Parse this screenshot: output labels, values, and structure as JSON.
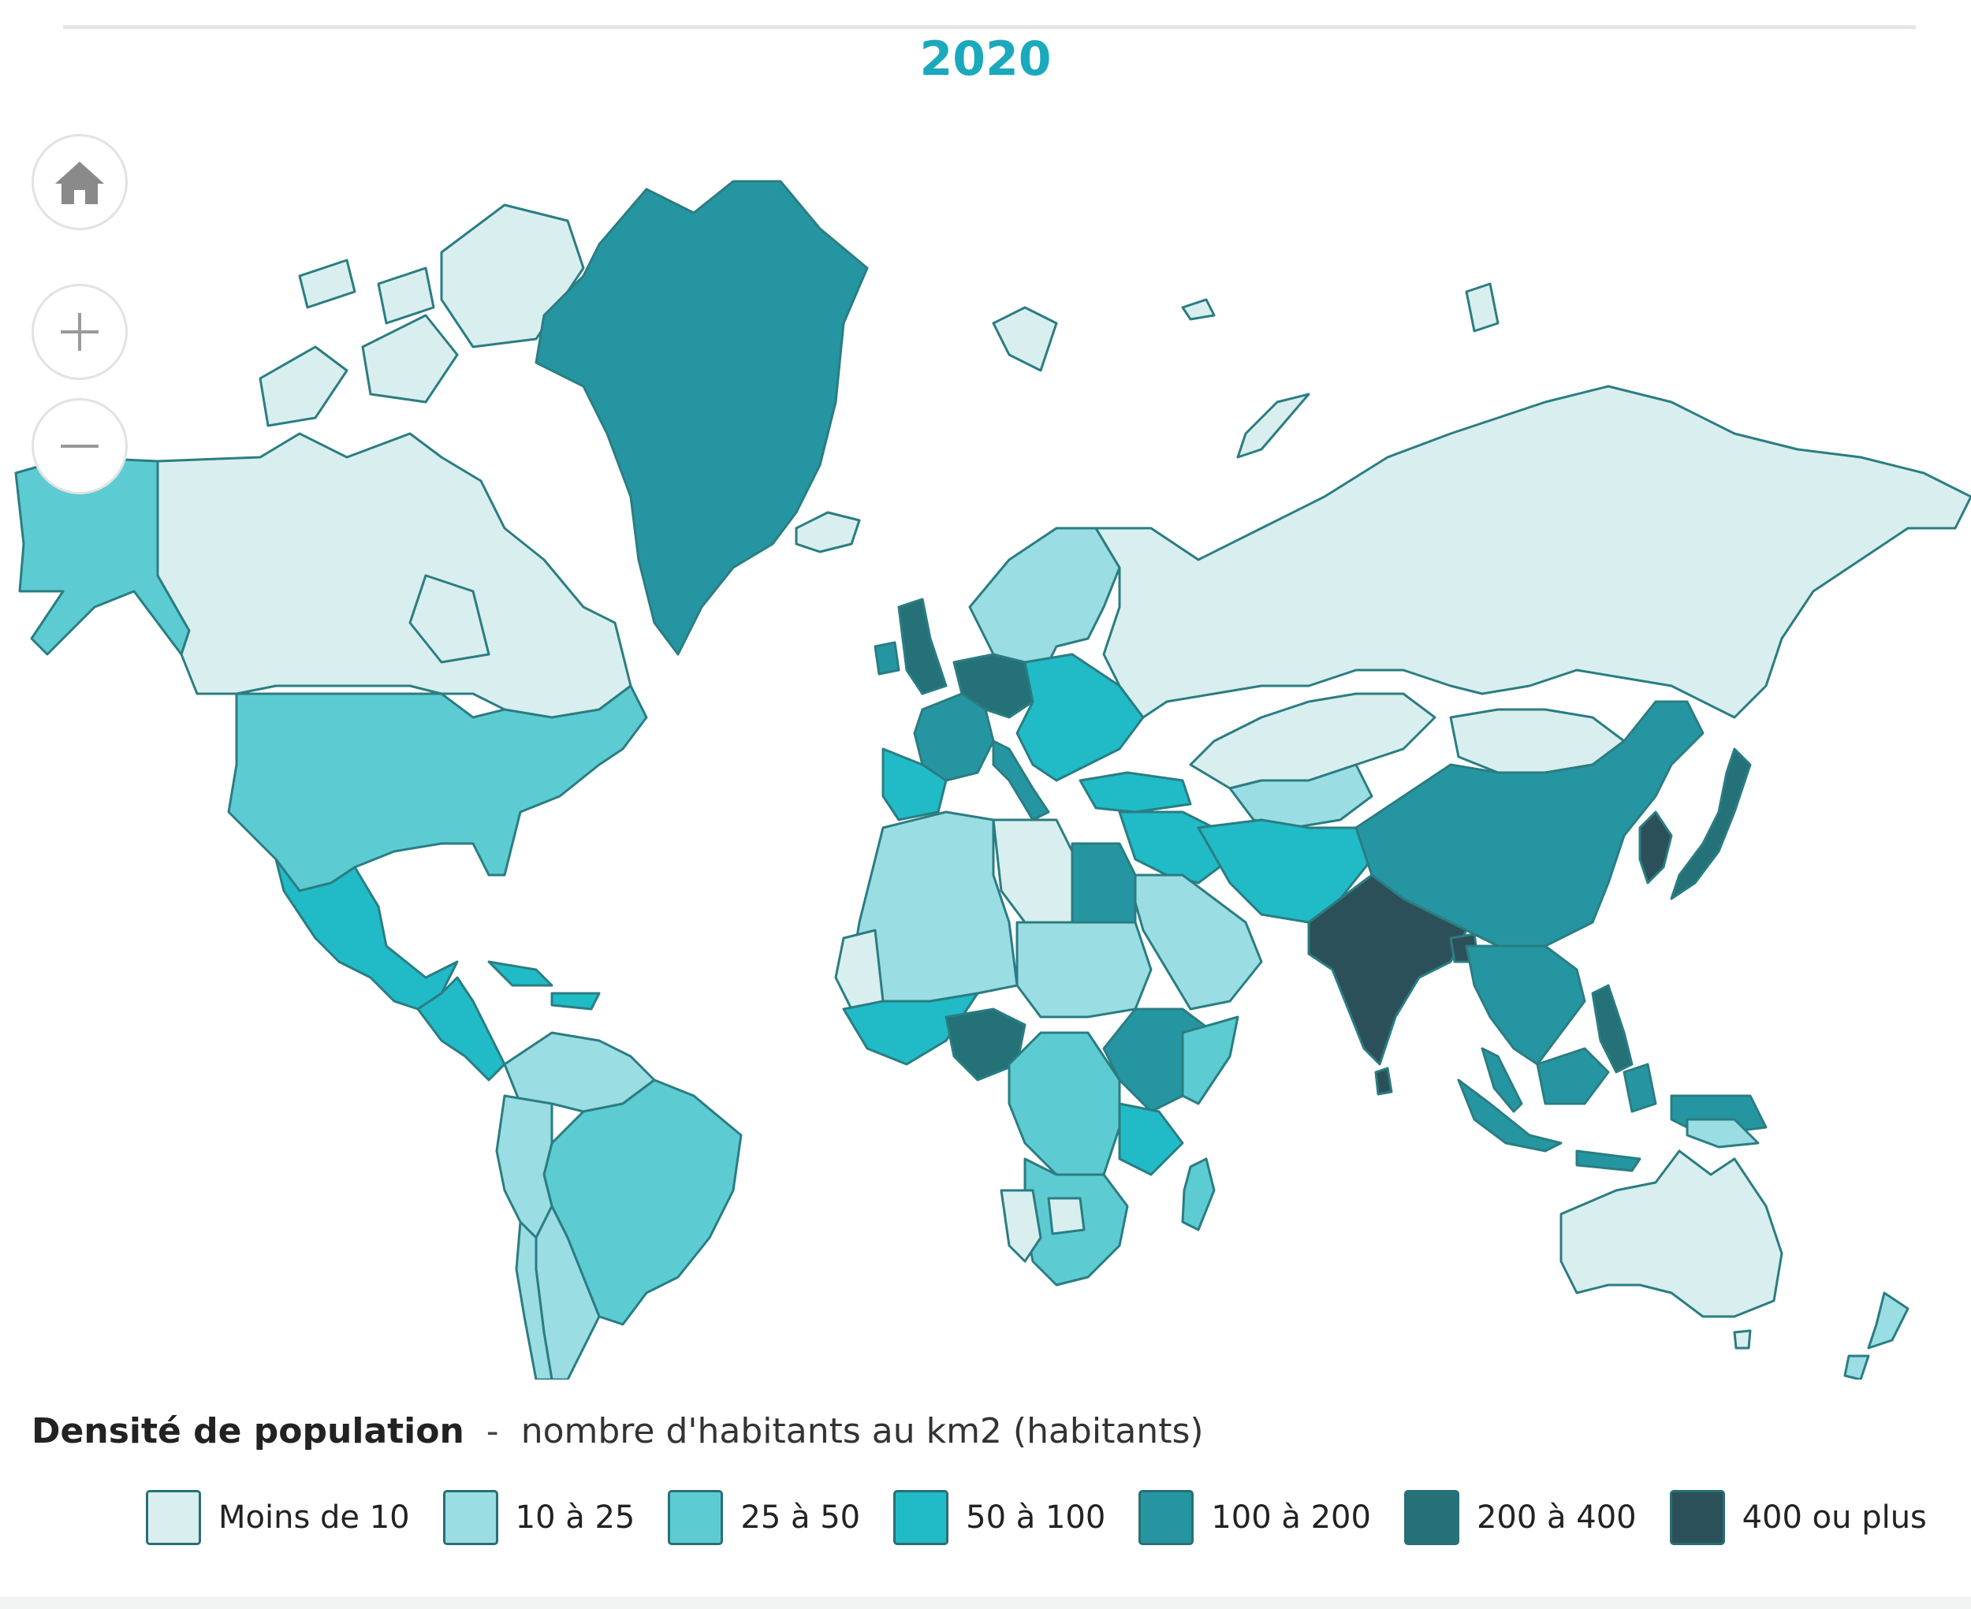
{
  "map": {
    "title": "2020",
    "legend": {
      "title": "Densité de population",
      "separator": "-",
      "subtitle": "nombre d'habitants au km2 (habitants)",
      "classes": [
        {
          "label": "Moins de 10",
          "color": "#d9eeee"
        },
        {
          "label": "10 à 25",
          "color": "#9adde3"
        },
        {
          "label": "25 à 50",
          "color": "#5cccd2"
        },
        {
          "label": "50 à 100",
          "color": "#20bbc6"
        },
        {
          "label": "100 à 200",
          "color": "#2596a1"
        },
        {
          "label": "200 à 400",
          "color": "#257178"
        },
        {
          "label": "400 ou plus",
          "color": "#2c5059"
        }
      ]
    },
    "controls": [
      {
        "name": "home-button",
        "icon": "home-icon"
      },
      {
        "name": "zoom-in-button",
        "icon": "plus-icon"
      },
      {
        "name": "zoom-out-button",
        "icon": "minus-icon"
      }
    ],
    "regions": {
      "canada": {
        "class": "Moins de 10"
      },
      "alaska": {
        "class": "25 à 50"
      },
      "usa": {
        "class": "25 à 50"
      },
      "greenland": {
        "class": "100 à 200"
      },
      "mexico": {
        "class": "50 à 100"
      },
      "central-america": {
        "class": "50 à 100"
      },
      "caribbean": {
        "class": "50 à 100"
      },
      "brazil": {
        "class": "25 à 50"
      },
      "south-america-west": {
        "class": "10 à 25"
      },
      "argentina": {
        "class": "10 à 25"
      },
      "chile": {
        "class": "10 à 25"
      },
      "russia": {
        "class": "Moins de 10"
      },
      "scandinavia": {
        "class": "10 à 25"
      },
      "western-europe": {
        "class": "100 à 200"
      },
      "uk": {
        "class": "200 à 400"
      },
      "benelux-germany": {
        "class": "200 à 400"
      },
      "iberia": {
        "class": "50 à 100"
      },
      "eastern-europe": {
        "class": "50 à 100"
      },
      "kazakhstan": {
        "class": "Moins de 10"
      },
      "mongolia": {
        "class": "Moins de 10"
      },
      "china": {
        "class": "100 à 200"
      },
      "india": {
        "class": "400 ou plus"
      },
      "japan": {
        "class": "200 à 400"
      },
      "korea": {
        "class": "400 ou plus"
      },
      "middle-east": {
        "class": "50 à 100"
      },
      "arabia": {
        "class": "10 à 25"
      },
      "north-africa": {
        "class": "10 à 25"
      },
      "libya": {
        "class": "Moins de 10"
      },
      "egypt": {
        "class": "100 à 200"
      },
      "west-africa": {
        "class": "50 à 100"
      },
      "nigeria": {
        "class": "200 à 400"
      },
      "central-africa": {
        "class": "25 à 50"
      },
      "east-africa": {
        "class": "100 à 200"
      },
      "southern-africa": {
        "class": "25 à 50"
      },
      "namibia-botswana": {
        "class": "Moins de 10"
      },
      "madagascar": {
        "class": "25 à 50"
      },
      "southeast-asia": {
        "class": "100 à 200"
      },
      "indonesia": {
        "class": "100 à 200"
      },
      "philippines": {
        "class": "200 à 400"
      },
      "australia": {
        "class": "Moins de 10"
      },
      "new-zealand": {
        "class": "10 à 25"
      },
      "iceland": {
        "class": "Moins de 10"
      },
      "svalbard": {
        "class": "Moins de 10"
      },
      "central-asia": {
        "class": "10 à 25"
      },
      "iran-pakistan": {
        "class": "50 à 100"
      }
    }
  }
}
